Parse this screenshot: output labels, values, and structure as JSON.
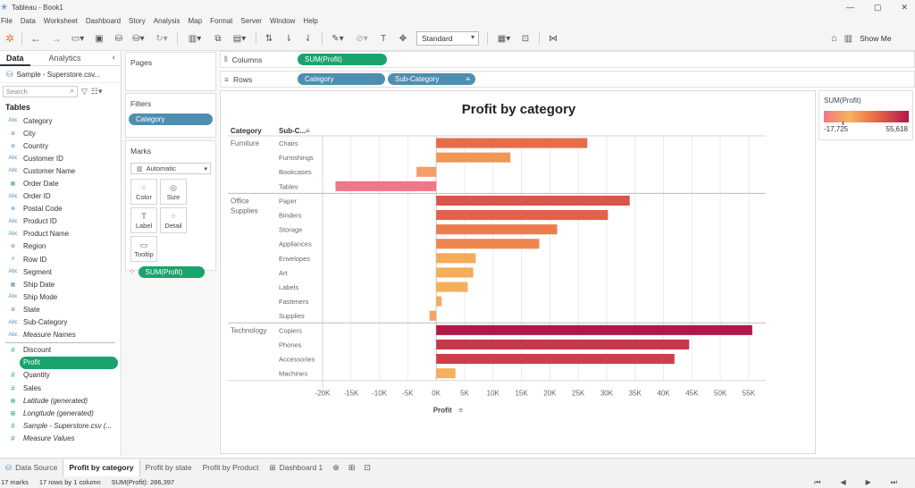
{
  "window": {
    "title": "Tableau - Book1",
    "controls": [
      "—",
      "▢",
      "✕"
    ]
  },
  "menu": [
    "File",
    "Data",
    "Worksheet",
    "Dashboard",
    "Story",
    "Analysis",
    "Map",
    "Format",
    "Server",
    "Window",
    "Help"
  ],
  "toolbar": {
    "fit": "Standard",
    "show_me": "Show Me"
  },
  "left_pane": {
    "tabs": {
      "data": "Data",
      "analytics": "Analytics"
    },
    "datasource": "Sample - Superstore.csv...",
    "search_placeholder": "Search",
    "tables_heading": "Tables",
    "dimensions": [
      {
        "name": "Category",
        "type": "Abc"
      },
      {
        "name": "City",
        "type": "geo"
      },
      {
        "name": "Country",
        "type": "geo"
      },
      {
        "name": "Customer ID",
        "type": "Abc"
      },
      {
        "name": "Customer Name",
        "type": "Abc"
      },
      {
        "name": "Order Date",
        "type": "date"
      },
      {
        "name": "Order ID",
        "type": "Abc"
      },
      {
        "name": "Postal Code",
        "type": "geo"
      },
      {
        "name": "Product ID",
        "type": "Abc"
      },
      {
        "name": "Product Name",
        "type": "Abc"
      },
      {
        "name": "Region",
        "type": "geo"
      },
      {
        "name": "Row ID",
        "type": "#"
      },
      {
        "name": "Segment",
        "type": "Abc"
      },
      {
        "name": "Ship Date",
        "type": "date"
      },
      {
        "name": "Ship Mode",
        "type": "Abc"
      },
      {
        "name": "State",
        "type": "geo"
      },
      {
        "name": "Sub-Category",
        "type": "Abc"
      },
      {
        "name": "Measure Names",
        "type": "Abc",
        "italic": true
      }
    ],
    "measures": [
      {
        "name": "Discount",
        "type": "#"
      },
      {
        "name": "Profit",
        "type": "#",
        "selected": true
      },
      {
        "name": "Quantity",
        "type": "#"
      },
      {
        "name": "Sales",
        "type": "#"
      },
      {
        "name": "Latitude (generated)",
        "type": "geo",
        "italic": true
      },
      {
        "name": "Longitude (generated)",
        "type": "geo",
        "italic": true
      },
      {
        "name": "Sample - Superstore.csv (...",
        "type": "#",
        "italic": true
      },
      {
        "name": "Measure Values",
        "type": "#",
        "italic": true
      }
    ]
  },
  "cards": {
    "pages": "Pages",
    "filters": "Filters",
    "filter_pill": "Category",
    "marks": "Marks",
    "mark_type": "Automatic",
    "mark_buttons": [
      {
        "label": "Color",
        "icon": "⁘"
      },
      {
        "label": "Size",
        "icon": "◎"
      },
      {
        "label": "Label",
        "icon": "T"
      },
      {
        "label": "Detail",
        "icon": "⁘"
      },
      {
        "label": "Tooltip",
        "icon": "▭"
      }
    ],
    "marks_pill": "SUM(Profit)"
  },
  "shelves": {
    "columns_label": "Columns",
    "columns_pill": "SUM(Profit)",
    "rows_label": "Rows",
    "rows_pills": [
      "Category",
      "Sub-Category"
    ]
  },
  "chart_data": {
    "type": "bar",
    "orientation": "horizontal",
    "title": "Profit by category",
    "row_headers": [
      "Category",
      "Sub-C..."
    ],
    "xlabel": "Profit",
    "xlim": [
      -20000,
      58000
    ],
    "xticks": [
      "-20K",
      "-15K",
      "-10K",
      "-5K",
      "0K",
      "5K",
      "10K",
      "15K",
      "20K",
      "25K",
      "30K",
      "35K",
      "40K",
      "45K",
      "50K",
      "55K"
    ],
    "groups": [
      {
        "category": "Furniture",
        "items": [
          {
            "sub": "Chairs",
            "value": 26590
          },
          {
            "sub": "Furnishings",
            "value": 13059
          },
          {
            "sub": "Bookcases",
            "value": -3473
          },
          {
            "sub": "Tables",
            "value": -17725
          }
        ]
      },
      {
        "category": "Office Supplies",
        "items": [
          {
            "sub": "Paper",
            "value": 34054
          },
          {
            "sub": "Binders",
            "value": 30222
          },
          {
            "sub": "Storage",
            "value": 21279
          },
          {
            "sub": "Appliances",
            "value": 18138
          },
          {
            "sub": "Envelopes",
            "value": 6964
          },
          {
            "sub": "Art",
            "value": 6528
          },
          {
            "sub": "Labels",
            "value": 5546
          },
          {
            "sub": "Fasteners",
            "value": 950
          },
          {
            "sub": "Supplies",
            "value": -1189
          }
        ]
      },
      {
        "category": "Technology",
        "items": [
          {
            "sub": "Copiers",
            "value": 55618
          },
          {
            "sub": "Phones",
            "value": 44516
          },
          {
            "sub": "Accessories",
            "value": 41937
          },
          {
            "sub": "Machines",
            "value": 3385
          }
        ]
      }
    ],
    "color_scale": {
      "min": -17725,
      "max": 55618
    },
    "grid": true
  },
  "legend": {
    "title": "SUM(Profit)",
    "min_label": "-17,725",
    "max_label": "55,618"
  },
  "sheet_tabs": {
    "data_source": "Data Source",
    "sheets": [
      "Profit by category",
      "Profit by state",
      "Profit by Product",
      "Dashboard 1"
    ]
  },
  "status": {
    "marks": "17 marks",
    "rows_cols": "17 rows by 1 column",
    "sum": "SUM(Profit): 286,397"
  }
}
